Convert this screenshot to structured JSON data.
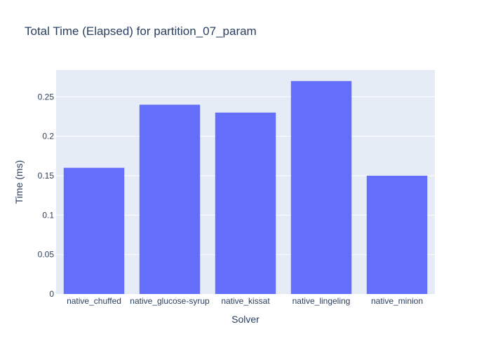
{
  "chart_data": {
    "type": "bar",
    "title": "Total Time (Elapsed) for partition_07_param",
    "xlabel": "Solver",
    "ylabel": "Time (ms)",
    "categories": [
      "native_chuffed",
      "native_glucose-syrup",
      "native_kissat",
      "native_lingeling",
      "native_minion"
    ],
    "values": [
      0.16,
      0.24,
      0.23,
      0.27,
      0.15
    ],
    "ylim": [
      0,
      0.284
    ],
    "yticks": [
      "0",
      "0.05",
      "0.1",
      "0.15",
      "0.2",
      "0.25"
    ],
    "grid": true,
    "colors": {
      "bar": "#636efa",
      "plot_bg": "#e5ecf6",
      "grid": "#ffffff",
      "text": "#2a3f5f"
    }
  }
}
